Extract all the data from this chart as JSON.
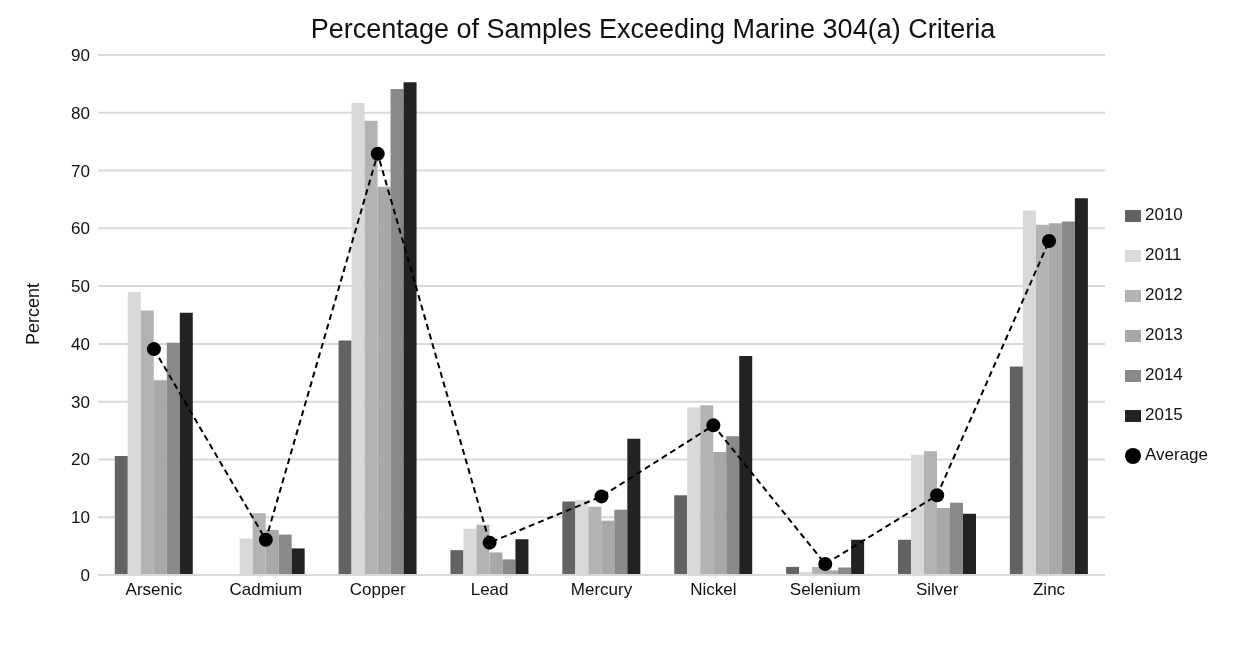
{
  "chart_data": {
    "type": "bar",
    "title": "Percentage of Samples Exceeding Marine 304(a) Criteria",
    "ylabel": "Percent",
    "categories": [
      "Arsenic",
      "Cadmium",
      "Copper",
      "Lead",
      "Mercury",
      "Nickel",
      "Selenium",
      "Silver",
      "Zinc"
    ],
    "series": [
      {
        "name": "2010",
        "color": "#636363",
        "values": [
          20.6,
          0,
          40.6,
          4.3,
          12.7,
          13.8,
          1.4,
          6.1,
          36.1
        ]
      },
      {
        "name": "2011",
        "color": "#d9d9d9",
        "values": [
          49,
          6.3,
          81.7,
          8,
          13,
          29,
          0.5,
          20.8,
          63.1
        ]
      },
      {
        "name": "2012",
        "color": "#b3b3b3",
        "values": [
          45.8,
          10.7,
          78.6,
          8.7,
          11.8,
          29.4,
          1.4,
          21.4,
          60.6
        ]
      },
      {
        "name": "2013",
        "color": "#a8a8a8",
        "values": [
          33.7,
          7.8,
          67.2,
          3.9,
          9.4,
          21.3,
          0.8,
          11.6,
          60.9
        ]
      },
      {
        "name": "2014",
        "color": "#898989",
        "values": [
          40.2,
          7,
          84.1,
          2.7,
          11.3,
          24,
          1.3,
          12.5,
          61.2
        ]
      },
      {
        "name": "2015",
        "color": "#222222",
        "values": [
          45.4,
          4.6,
          85.3,
          6.2,
          23.6,
          37.9,
          6.1,
          10.6,
          65.2
        ]
      },
      {
        "name": "Average",
        "type": "line",
        "color": "#000000",
        "marker": "circle",
        "line_style": "dashed",
        "values": [
          39.1,
          6.1,
          72.9,
          5.6,
          13.6,
          25.9,
          1.9,
          13.8,
          57.8
        ]
      }
    ],
    "ylim": [
      0,
      90
    ],
    "yticks": [
      0,
      10,
      20,
      30,
      40,
      50,
      60,
      70,
      80,
      90
    ],
    "grid": "y",
    "legend": "right"
  }
}
